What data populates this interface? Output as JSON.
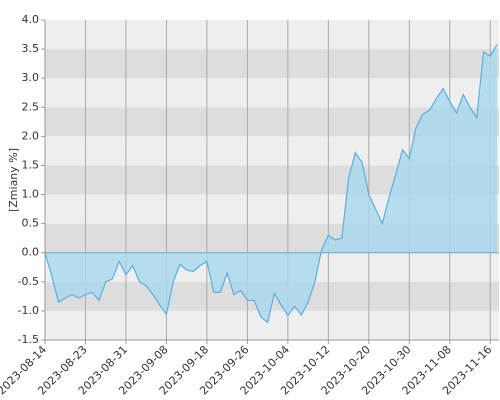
{
  "chart_data": {
    "type": "area",
    "y_label": "[Zmiany %]",
    "categories": [
      "2023-08-14",
      null,
      null,
      null,
      null,
      null,
      "2023-08-23",
      null,
      null,
      null,
      null,
      null,
      "2023-08-31",
      null,
      null,
      null,
      null,
      null,
      "2023-09-08",
      null,
      null,
      null,
      null,
      null,
      "2023-09-18",
      null,
      null,
      null,
      null,
      null,
      "2023-09-26",
      null,
      null,
      null,
      null,
      null,
      "2023-10-04",
      null,
      null,
      null,
      null,
      null,
      "2023-10-12",
      null,
      null,
      null,
      null,
      null,
      "2023-10-20",
      null,
      null,
      null,
      null,
      null,
      "2023-10-30",
      null,
      null,
      null,
      null,
      null,
      "2023-11-08",
      null,
      null,
      null,
      null,
      null,
      "2023-11-16",
      null
    ],
    "values": [
      0,
      -0.4,
      -0.85,
      -0.78,
      -0.72,
      -0.78,
      -0.72,
      -0.68,
      -0.82,
      -0.5,
      -0.45,
      -0.15,
      -0.38,
      -0.22,
      -0.5,
      -0.57,
      -0.72,
      -0.9,
      -1.06,
      -0.5,
      -0.2,
      -0.3,
      -0.32,
      -0.22,
      -0.15,
      -0.68,
      -0.68,
      -0.35,
      -0.72,
      -0.65,
      -0.82,
      -0.82,
      -1.1,
      -1.2,
      -0.7,
      -0.9,
      -1.08,
      -0.92,
      -1.07,
      -0.85,
      -0.5,
      0.05,
      0.3,
      0.22,
      0.25,
      1.28,
      1.72,
      1.55,
      1.0,
      0.75,
      0.5,
      0.95,
      1.35,
      1.77,
      1.62,
      2.15,
      2.38,
      2.45,
      2.65,
      2.82,
      2.6,
      2.4,
      2.72,
      2.5,
      2.32,
      3.45,
      3.38,
      3.58
    ],
    "color": "#5aaee0",
    "fill": "#a8d8ee",
    "ylim": [
      -1.5,
      4.0
    ],
    "yticks": [
      {
        "value": -1.5,
        "label": "-1.5"
      },
      {
        "value": -1.0,
        "label": "-1.0"
      },
      {
        "value": -0.5,
        "label": "-0.5"
      },
      {
        "value": 0.0,
        "label": "0.0"
      },
      {
        "value": 0.5,
        "label": "0.5"
      },
      {
        "value": 1.0,
        "label": "1.0"
      },
      {
        "value": 1.5,
        "label": "1.5"
      },
      {
        "value": 2.0,
        "label": "2.0"
      },
      {
        "value": 2.5,
        "label": "2.5"
      },
      {
        "value": 3.0,
        "label": "3.0"
      },
      {
        "value": 3.5,
        "label": "3.5"
      },
      {
        "value": 4.0,
        "label": "4.0"
      }
    ],
    "bands": [
      "#dddddd",
      "#eeeeee"
    ],
    "grid": true
  }
}
